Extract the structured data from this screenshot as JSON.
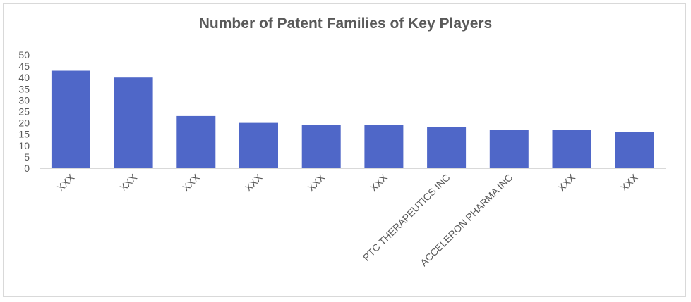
{
  "chart_data": {
    "type": "bar",
    "title": "Number of Patent Families of Key Players",
    "xlabel": "",
    "ylabel": "",
    "categories": [
      "XXX",
      "XXX",
      "XXX",
      "XXX",
      "XXX",
      "XXX",
      "PTC THERAPEUTICS INC",
      "ACCELERON PHARMA INC",
      "XXX",
      "XXX"
    ],
    "values": [
      43,
      40,
      23,
      20,
      19,
      19,
      18,
      17,
      17,
      16
    ],
    "ylim": [
      0,
      50
    ],
    "yticks": [
      "0",
      "5",
      "10",
      "15",
      "20",
      "25",
      "30",
      "35",
      "40",
      "45",
      "50"
    ],
    "grid": false,
    "legend": "none",
    "bar_color": "#4f67c8",
    "axis_color": "#d9d9d9"
  }
}
